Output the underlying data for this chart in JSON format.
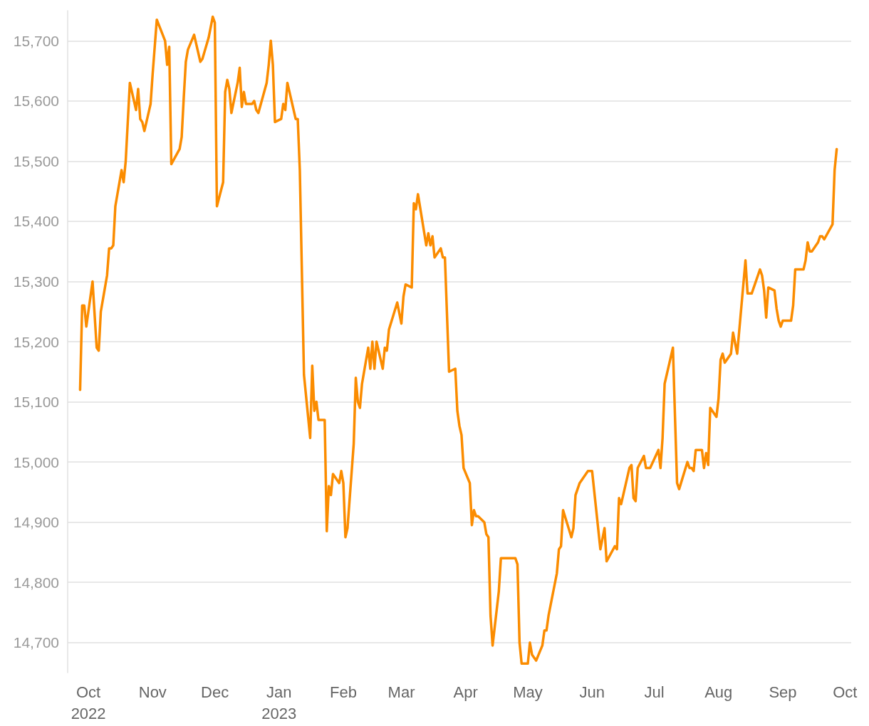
{
  "chart_data": {
    "type": "line",
    "x": [
      "2022-09-27",
      "2022-09-28",
      "2022-09-29",
      "2022-09-30",
      "2022-10-03",
      "2022-10-05",
      "2022-10-06",
      "2022-10-07",
      "2022-10-10",
      "2022-10-11",
      "2022-10-12",
      "2022-10-13",
      "2022-10-14",
      "2022-10-17",
      "2022-10-18",
      "2022-10-19",
      "2022-10-21",
      "2022-10-24",
      "2022-10-25",
      "2022-10-26",
      "2022-10-27",
      "2022-10-28",
      "2022-10-31",
      "2022-11-01",
      "2022-11-03",
      "2022-11-07",
      "2022-11-08",
      "2022-11-09",
      "2022-11-10",
      "2022-11-14",
      "2022-11-15",
      "2022-11-16",
      "2022-11-17",
      "2022-11-18",
      "2022-11-21",
      "2022-11-23",
      "2022-11-24",
      "2022-11-25",
      "2022-11-28",
      "2022-11-30",
      "2022-12-01",
      "2022-12-02",
      "2022-12-05",
      "2022-12-06",
      "2022-12-07",
      "2022-12-08",
      "2022-12-09",
      "2022-12-12",
      "2022-12-13",
      "2022-12-14",
      "2022-12-15",
      "2022-12-16",
      "2022-12-19",
      "2022-12-20",
      "2022-12-21",
      "2022-12-22",
      "2022-12-26",
      "2022-12-27",
      "2022-12-28",
      "2022-12-29",
      "2022-12-30",
      "2023-01-02",
      "2023-01-03",
      "2023-01-04",
      "2023-01-05",
      "2023-01-09",
      "2023-01-10",
      "2023-01-11",
      "2023-01-13",
      "2023-01-16",
      "2023-01-17",
      "2023-01-18",
      "2023-01-19",
      "2023-01-20",
      "2023-01-23",
      "2023-01-24",
      "2023-01-25",
      "2023-01-26",
      "2023-01-27",
      "2023-01-30",
      "2023-01-31",
      "2023-02-01",
      "2023-02-02",
      "2023-02-03",
      "2023-02-06",
      "2023-02-07",
      "2023-02-08",
      "2023-02-09",
      "2023-02-10",
      "2023-02-13",
      "2023-02-14",
      "2023-02-15",
      "2023-02-16",
      "2023-02-17",
      "2023-02-20",
      "2023-02-21",
      "2023-02-22",
      "2023-02-23",
      "2023-02-27",
      "2023-03-01",
      "2023-03-02",
      "2023-03-03",
      "2023-03-06",
      "2023-03-07",
      "2023-03-08",
      "2023-03-09",
      "2023-03-13",
      "2023-03-14",
      "2023-03-15",
      "2023-03-16",
      "2023-03-17",
      "2023-03-20",
      "2023-03-21",
      "2023-03-22",
      "2023-03-24",
      "2023-03-27",
      "2023-03-28",
      "2023-03-29",
      "2023-03-30",
      "2023-03-31",
      "2023-04-03",
      "2023-04-04",
      "2023-04-05",
      "2023-04-06",
      "2023-04-07",
      "2023-04-10",
      "2023-04-11",
      "2023-04-12",
      "2023-04-13",
      "2023-04-14",
      "2023-04-17",
      "2023-04-18",
      "2023-04-25",
      "2023-04-26",
      "2023-04-27",
      "2023-04-28",
      "2023-05-01",
      "2023-05-02",
      "2023-05-03",
      "2023-05-05",
      "2023-05-08",
      "2023-05-09",
      "2023-05-10",
      "2023-05-11",
      "2023-05-15",
      "2023-05-16",
      "2023-05-17",
      "2023-05-18",
      "2023-05-22",
      "2023-05-23",
      "2023-05-24",
      "2023-05-26",
      "2023-05-29",
      "2023-05-30",
      "2023-06-01",
      "2023-06-05",
      "2023-06-07",
      "2023-06-08",
      "2023-06-12",
      "2023-06-13",
      "2023-06-14",
      "2023-06-15",
      "2023-06-19",
      "2023-06-20",
      "2023-06-21",
      "2023-06-22",
      "2023-06-23",
      "2023-06-26",
      "2023-06-27",
      "2023-06-29",
      "2023-07-03",
      "2023-07-04",
      "2023-07-05",
      "2023-07-06",
      "2023-07-10",
      "2023-07-11",
      "2023-07-12",
      "2023-07-13",
      "2023-07-17",
      "2023-07-18",
      "2023-07-19",
      "2023-07-20",
      "2023-07-21",
      "2023-07-24",
      "2023-07-25",
      "2023-07-26",
      "2023-07-27",
      "2023-07-28",
      "2023-07-31",
      "2023-08-01",
      "2023-08-02",
      "2023-08-03",
      "2023-08-04",
      "2023-08-07",
      "2023-08-08",
      "2023-08-10",
      "2023-08-14",
      "2023-08-15",
      "2023-08-17",
      "2023-08-21",
      "2023-08-22",
      "2023-08-23",
      "2023-08-24",
      "2023-08-25",
      "2023-08-28",
      "2023-08-29",
      "2023-08-30",
      "2023-08-31",
      "2023-09-01",
      "2023-09-05",
      "2023-09-06",
      "2023-09-07",
      "2023-09-11",
      "2023-09-12",
      "2023-09-13",
      "2023-09-14",
      "2023-09-15",
      "2023-09-18",
      "2023-09-19",
      "2023-09-20",
      "2023-09-21",
      "2023-09-25",
      "2023-09-26",
      "2023-09-27"
    ],
    "series": [
      {
        "color": "#fb8c00",
        "values": [
          15120,
          15260,
          15260,
          15225,
          15300,
          15190,
          15185,
          15250,
          15310,
          15355,
          15355,
          15360,
          15425,
          15485,
          15465,
          15500,
          15630,
          15585,
          15620,
          15570,
          15565,
          15550,
          15595,
          15645,
          15735,
          15700,
          15660,
          15690,
          15495,
          15520,
          15540,
          15605,
          15665,
          15685,
          15710,
          15680,
          15665,
          15670,
          15705,
          15740,
          15730,
          15425,
          15465,
          15615,
          15635,
          15620,
          15580,
          15630,
          15655,
          15590,
          15615,
          15595,
          15595,
          15600,
          15585,
          15580,
          15630,
          15660,
          15700,
          15660,
          15565,
          15570,
          15595,
          15585,
          15630,
          15570,
          15570,
          15485,
          15145,
          15040,
          15160,
          15085,
          15100,
          15070,
          15070,
          14885,
          14960,
          14945,
          14980,
          14965,
          14985,
          14965,
          14875,
          14890,
          15030,
          15140,
          15100,
          15090,
          15130,
          15190,
          15155,
          15200,
          15155,
          15200,
          15155,
          15190,
          15185,
          15220,
          15265,
          15230,
          15275,
          15295,
          15290,
          15430,
          15420,
          15445,
          15360,
          15380,
          15360,
          15375,
          15340,
          15355,
          15340,
          15340,
          15150,
          15155,
          15085,
          15060,
          15045,
          14990,
          14965,
          14895,
          14920,
          14910,
          14910,
          14900,
          14880,
          14875,
          14745,
          14695,
          14785,
          14840,
          14840,
          14830,
          14700,
          14665,
          14665,
          14700,
          14680,
          14670,
          14695,
          14720,
          14720,
          14745,
          14815,
          14855,
          14860,
          14920,
          14875,
          14890,
          14945,
          14965,
          14980,
          14985,
          14985,
          14855,
          14890,
          14835,
          14860,
          14855,
          14940,
          14930,
          14990,
          14995,
          14940,
          14935,
          14990,
          15010,
          14990,
          14990,
          15020,
          14990,
          15040,
          15130,
          15190,
          15075,
          14965,
          14955,
          15000,
          14990,
          14990,
          14985,
          15020,
          15020,
          14990,
          15015,
          14995,
          15090,
          15075,
          15105,
          15170,
          15180,
          15165,
          15180,
          15215,
          15180,
          15335,
          15280,
          15280,
          15320,
          15310,
          15285,
          15240,
          15290,
          15285,
          15255,
          15235,
          15225,
          15235,
          15235,
          15260,
          15320,
          15320,
          15335,
          15365,
          15350,
          15350,
          15365,
          15375,
          15375,
          15370,
          15395,
          15485,
          15520
        ]
      }
    ],
    "xlim": [
      "2022-09-21",
      "2023-10-04"
    ],
    "xticks": [
      {
        "value": "2022-10-01",
        "label": "Oct\n2022"
      },
      {
        "value": "2022-11-01",
        "label": "Nov"
      },
      {
        "value": "2022-12-01",
        "label": "Dec"
      },
      {
        "value": "2023-01-01",
        "label": "Jan\n2023"
      },
      {
        "value": "2023-02-01",
        "label": "Feb"
      },
      {
        "value": "2023-03-01",
        "label": "Mar"
      },
      {
        "value": "2023-04-01",
        "label": "Apr"
      },
      {
        "value": "2023-05-01",
        "label": "May"
      },
      {
        "value": "2023-06-01",
        "label": "Jun"
      },
      {
        "value": "2023-07-01",
        "label": "Jul"
      },
      {
        "value": "2023-08-01",
        "label": "Aug"
      },
      {
        "value": "2023-09-01",
        "label": "Sep"
      },
      {
        "value": "2023-10-01",
        "label": "Oct"
      }
    ],
    "ylim": [
      14650,
      15750
    ],
    "yticks": [
      {
        "value": 14700,
        "label": "14,700"
      },
      {
        "value": 14800,
        "label": "14,800"
      },
      {
        "value": 14900,
        "label": "14,900"
      },
      {
        "value": 15000,
        "label": "15,000"
      },
      {
        "value": 15100,
        "label": "15,100"
      },
      {
        "value": 15200,
        "label": "15,200"
      },
      {
        "value": 15300,
        "label": "15,300"
      },
      {
        "value": 15400,
        "label": "15,400"
      },
      {
        "value": 15500,
        "label": "15,500"
      },
      {
        "value": 15600,
        "label": "15,600"
      },
      {
        "value": 15700,
        "label": "15,700"
      }
    ],
    "grid": "y",
    "marker": "none",
    "line_style": "solid"
  }
}
